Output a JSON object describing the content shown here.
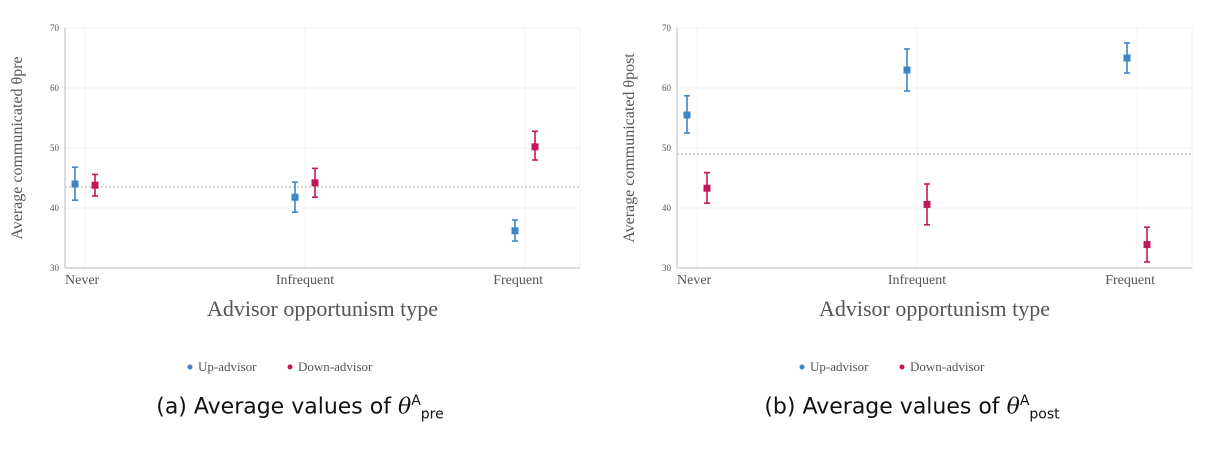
{
  "chart_data": [
    {
      "type": "scatter",
      "caption": {
        "prefix": "(a) Average values of ",
        "symbol": "θ",
        "sup": "A",
        "sub": "pre"
      },
      "xlabel": "Advisor opportunism type",
      "ylabel": "Average communicated θpre",
      "categories": [
        "Never",
        "Infrequent",
        "Frequent"
      ],
      "ylim": [
        30,
        70
      ],
      "yticks": [
        30,
        40,
        50,
        60,
        70
      ],
      "reference_line": 43.5,
      "legend": "bottom-center",
      "series": [
        {
          "name": "Up-advisor",
          "color": "#3d85c6",
          "values": [
            44,
            41.8,
            36.2
          ],
          "ci_low": [
            41.3,
            39.3,
            34.5
          ],
          "ci_high": [
            46.8,
            44.3,
            38
          ],
          "offset": -1
        },
        {
          "name": "Down-advisor",
          "color": "#c2185b",
          "values": [
            43.8,
            44.2,
            50.2
          ],
          "ci_low": [
            42,
            41.8,
            48
          ],
          "ci_high": [
            45.6,
            46.6,
            52.8
          ],
          "offset": 1
        }
      ]
    },
    {
      "type": "scatter",
      "caption": {
        "prefix": "(b) Average values of ",
        "symbol": "θ",
        "sup": "A",
        "sub": "post"
      },
      "xlabel": "Advisor opportunism type",
      "ylabel": "Average communicated θpost",
      "categories": [
        "Never",
        "Infrequent",
        "Frequent"
      ],
      "ylim": [
        30,
        70
      ],
      "yticks": [
        30,
        40,
        50,
        60,
        70
      ],
      "reference_line": 49,
      "legend": "bottom-center",
      "series": [
        {
          "name": "Up-advisor",
          "color": "#3d85c6",
          "values": [
            55.5,
            63,
            65
          ],
          "ci_low": [
            52.5,
            59.5,
            62.5
          ],
          "ci_high": [
            58.7,
            66.5,
            67.5
          ],
          "offset": -1
        },
        {
          "name": "Down-advisor",
          "color": "#c2185b",
          "values": [
            43.3,
            40.6,
            33.9
          ],
          "ci_low": [
            40.8,
            37.2,
            31
          ],
          "ci_high": [
            45.9,
            44,
            36.8
          ],
          "offset": 1
        }
      ]
    }
  ]
}
